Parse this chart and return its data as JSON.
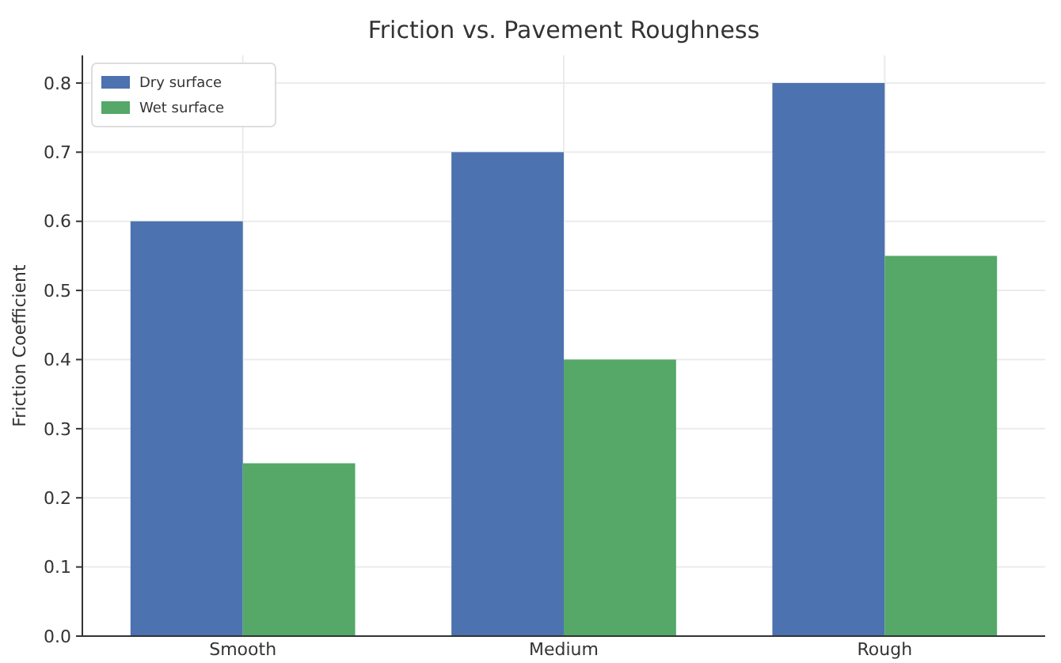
{
  "chart_data": {
    "type": "bar",
    "title": "Friction vs. Pavement Roughness",
    "ylabel": "Friction Coefficient",
    "categories": [
      "Smooth",
      "Medium",
      "Rough"
    ],
    "series": [
      {
        "name": "Dry surface",
        "color": "#4c72b0",
        "values": [
          0.6,
          0.7,
          0.8
        ]
      },
      {
        "name": "Wet surface",
        "color": "#55a868",
        "values": [
          0.25,
          0.4,
          0.55
        ]
      }
    ],
    "ylim": [
      0,
      0.84
    ],
    "yticks": [
      {
        "value": 0,
        "label": "0.0"
      },
      0.1,
      0.2,
      0.3,
      0.4,
      0.5,
      0.6,
      0.7,
      0.8
    ],
    "grid": true,
    "legend": "top left"
  }
}
